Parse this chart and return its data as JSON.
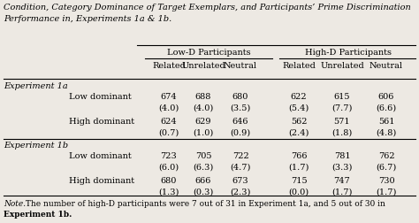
{
  "title_line1": "Condition, Category Dominance of Target Exemplars, and Participants’ Prime Discrimination",
  "title_line2": "Performance in, Experiments 1a & 1b.",
  "col_group1": "Low-D Participants",
  "col_group2": "High-D Participants",
  "col_headers": [
    "Related",
    "Unrelated",
    "Neutral",
    "Related",
    "Unrelated",
    "Neutral"
  ],
  "sections": [
    {
      "label": "Experiment 1a",
      "rows": [
        {
          "label": "Low dominant",
          "values": [
            "674",
            "688",
            "680",
            "622",
            "615",
            "606"
          ],
          "sub_values": [
            "(4.0)",
            "(4.0)",
            "(3.5)",
            "(5.4)",
            "(7.7)",
            "(6.6)"
          ]
        },
        {
          "label": "High dominant",
          "values": [
            "624",
            "629",
            "646",
            "562",
            "571",
            "561"
          ],
          "sub_values": [
            "(0.7)",
            "(1.0)",
            "(0.9)",
            "(2.4)",
            "(1.8)",
            "(4.8)"
          ]
        }
      ]
    },
    {
      "label": "Experiment 1b",
      "rows": [
        {
          "label": "Low dominant",
          "values": [
            "723",
            "705",
            "722",
            "766",
            "781",
            "762"
          ],
          "sub_values": [
            "(6.0)",
            "(6.3)",
            "(4.7)",
            "(1.7)",
            "(3.3)",
            "(6.7)"
          ]
        },
        {
          "label": "High dominant",
          "values": [
            "680",
            "666",
            "673",
            "715",
            "747",
            "730"
          ],
          "sub_values": [
            "(1.3)",
            "(0.3)",
            "(2.3)",
            "(0.0)",
            "(1.7)",
            "(1.7)"
          ]
        }
      ]
    }
  ],
  "note_italic": "Note.",
  "note_rest": " The number of high-D participants were 7 out of 31 in Experiment 1a, and 5 out of 30 in",
  "note_line2": "Experiment 1b.",
  "bg_color": "#ede9e3",
  "fs": 7.0,
  "title_fs": 7.0
}
